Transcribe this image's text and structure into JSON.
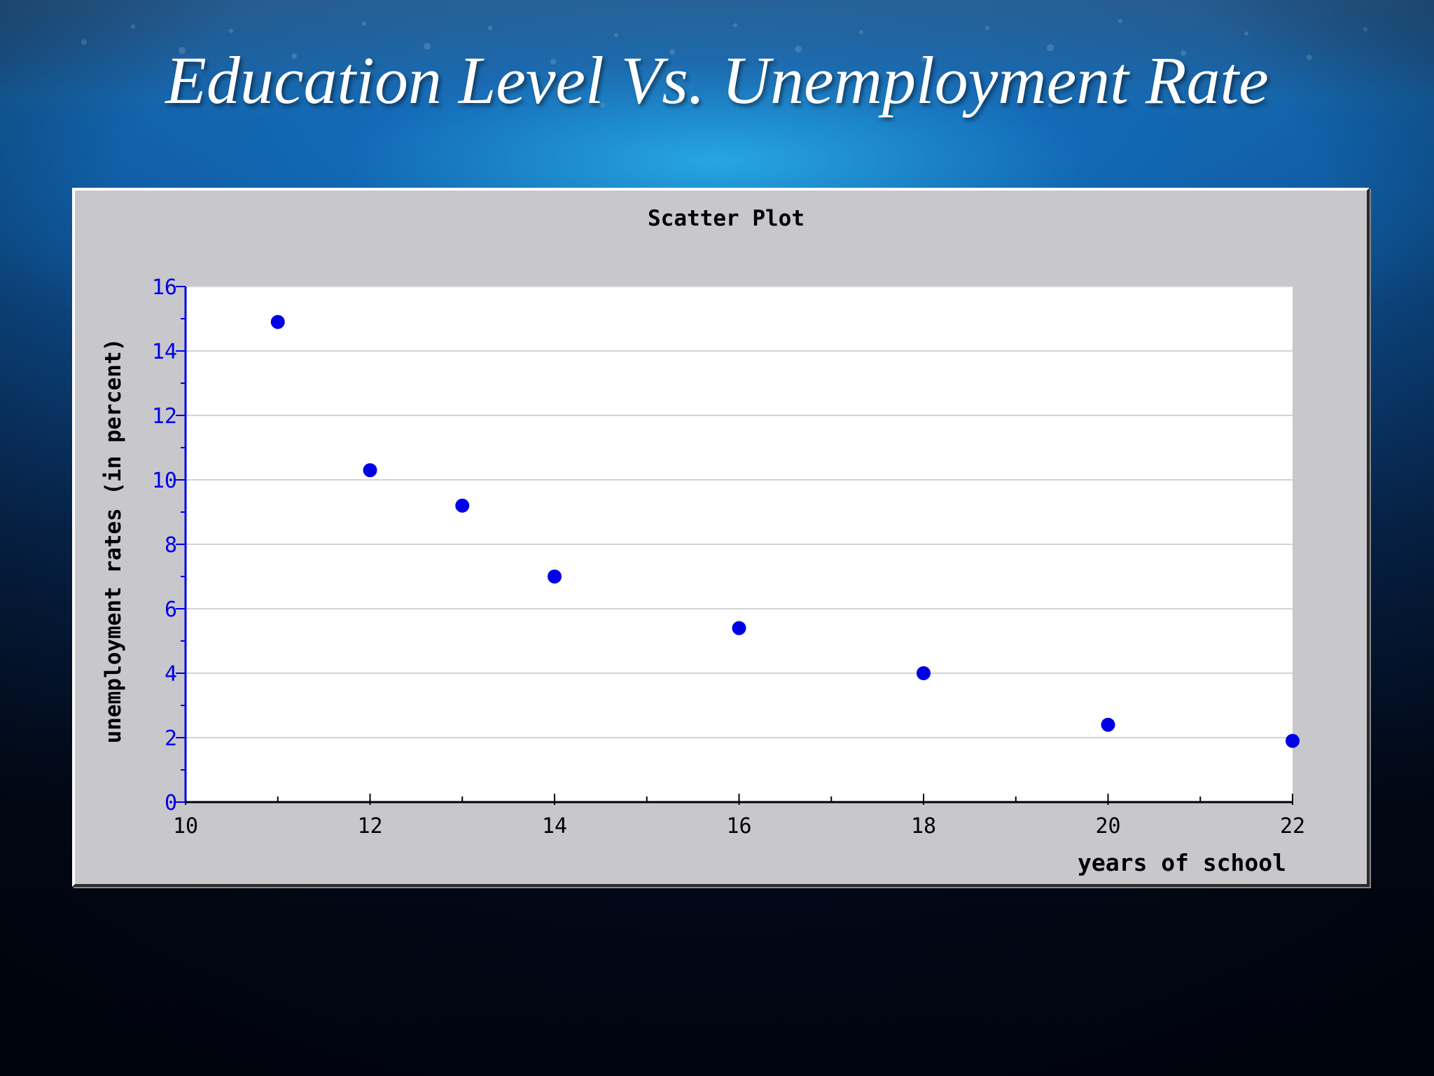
{
  "slide": {
    "title": "Education Level Vs. Unemployment Rate"
  },
  "colors": {
    "point": "#0000e6",
    "tick_label": "#0000e6",
    "axis_title": "#000000",
    "plot_bg": "#ffffff",
    "panel_bg": "#c8c7cc",
    "grid": "#d4d4d8"
  },
  "chart_data": {
    "type": "scatter",
    "title": "Scatter Plot",
    "xlabel": "years of school",
    "ylabel": "unemployment rates (in percent)",
    "xlim": [
      10,
      22
    ],
    "ylim": [
      0,
      16
    ],
    "x_ticks": [
      10,
      12,
      14,
      16,
      18,
      20,
      22
    ],
    "y_ticks": [
      0,
      2,
      4,
      6,
      8,
      10,
      12,
      14,
      16
    ],
    "grid": "horizontal",
    "legend": "none",
    "series": [
      {
        "points": [
          {
            "x": 11,
            "y": 14.9
          },
          {
            "x": 12,
            "y": 10.3
          },
          {
            "x": 13,
            "y": 9.2
          },
          {
            "x": 14,
            "y": 7.0
          },
          {
            "x": 16,
            "y": 5.4
          },
          {
            "x": 18,
            "y": 4.0
          },
          {
            "x": 20,
            "y": 2.4
          },
          {
            "x": 22,
            "y": 1.9
          }
        ]
      }
    ]
  }
}
